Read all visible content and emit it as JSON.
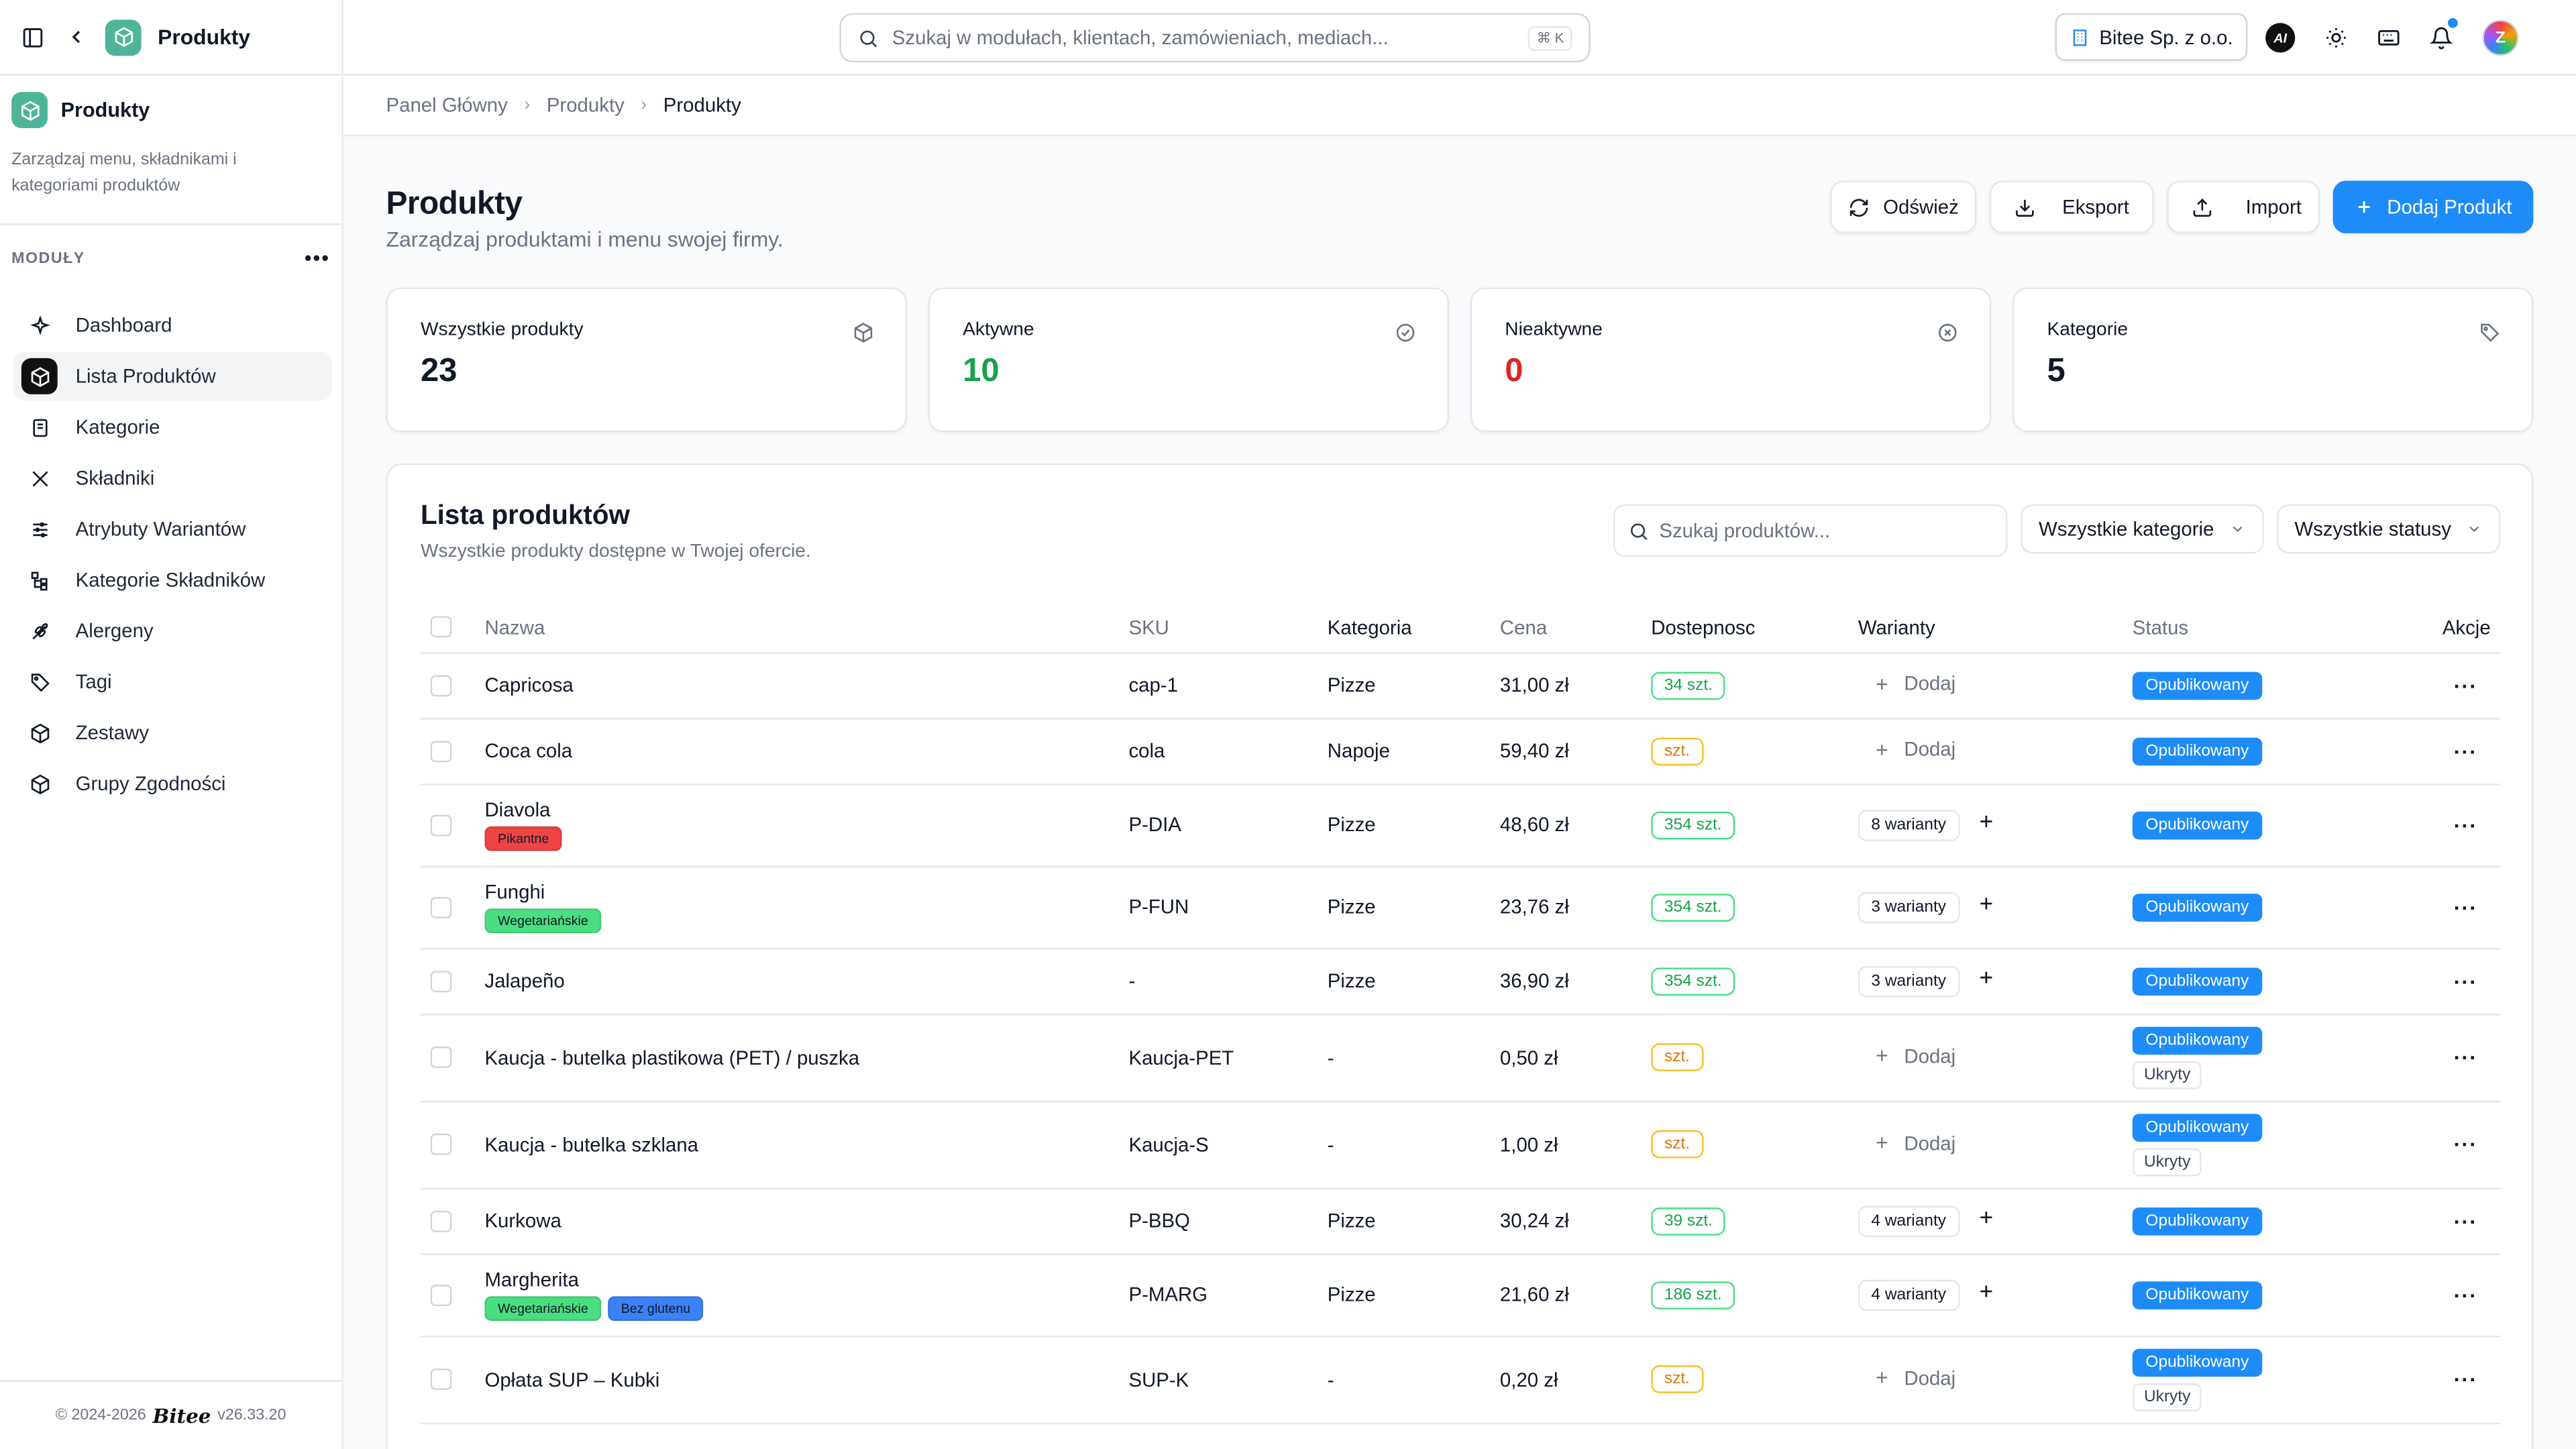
{
  "app": {
    "name": "Produkty"
  },
  "module": {
    "title": "Produkty",
    "description": "Zarządzaj menu, składnikami i kategoriami produktów",
    "section_label": "MODUŁY",
    "nav": [
      {
        "label": "Dashboard",
        "icon": "sparkle-icon",
        "active": false
      },
      {
        "label": "Lista Produktów",
        "icon": "box-icon",
        "active": true
      },
      {
        "label": "Kategorie",
        "icon": "book-icon",
        "active": false
      },
      {
        "label": "Składniki",
        "icon": "utensils-icon",
        "active": false
      },
      {
        "label": "Atrybuty Wariantów",
        "icon": "sliders-icon",
        "active": false
      },
      {
        "label": "Kategorie Składników",
        "icon": "tree-icon",
        "active": false
      },
      {
        "label": "Alergeny",
        "icon": "wheat-icon",
        "active": false
      },
      {
        "label": "Tagi",
        "icon": "tag-icon",
        "active": false
      },
      {
        "label": "Zestawy",
        "icon": "box-icon",
        "active": false
      },
      {
        "label": "Grupy Zgodności",
        "icon": "box-icon",
        "active": false
      }
    ]
  },
  "footer": {
    "copyright": "© 2024-2026",
    "brand": "Bitee",
    "version": "v26.33.20"
  },
  "topbar": {
    "search_placeholder": "Szukaj w modułach, klientach, zamówieniach, mediach...",
    "search_shortcut": "⌘ K",
    "company": "Bitee Sp. z o.o.",
    "ai_label": "AI"
  },
  "breadcrumb": [
    "Panel Główny",
    "Produkty",
    "Produkty"
  ],
  "page": {
    "title": "Produkty",
    "subtitle": "Zarządzaj produktami i menu swojej firmy.",
    "buttons": {
      "refresh": "Odśwież",
      "export": "Eksport",
      "import": "Import",
      "add": "Dodaj Produkt"
    }
  },
  "stats": [
    {
      "label": "Wszystkie produkty",
      "value": "23",
      "color": "#111827",
      "icon": "box-icon"
    },
    {
      "label": "Aktywne",
      "value": "10",
      "color": "#16a34a",
      "icon": "check-circle-icon"
    },
    {
      "label": "Nieaktywne",
      "value": "0",
      "color": "#dc2626",
      "icon": "x-circle-icon"
    },
    {
      "label": "Kategorie",
      "value": "5",
      "color": "#111827",
      "icon": "tag-icon"
    }
  ],
  "list": {
    "title": "Lista produktów",
    "subtitle": "Wszystkie produkty dostępne w Twojej ofercie.",
    "search_placeholder": "Szukaj produktów...",
    "category_filter": "Wszystkie kategorie",
    "status_filter": "Wszystkie statusy",
    "columns": [
      "Nazwa",
      "SKU",
      "Kategoria",
      "Cena",
      "Dostepnosc",
      "Warianty",
      "Status",
      "Akcje"
    ],
    "add_variant_label": "Dodaj",
    "rows": [
      {
        "name": "Capricosa",
        "sku": "cap-1",
        "category": "Pizze",
        "price": "31,00 zł",
        "stock": "34 szt.",
        "stock_state": "ok",
        "variants": "",
        "status": [
          "Opublikowany"
        ],
        "tags": []
      },
      {
        "name": "Coca cola",
        "sku": "cola",
        "category": "Napoje",
        "price": "59,40 zł",
        "stock": "szt.",
        "stock_state": "warn",
        "variants": "",
        "status": [
          "Opublikowany"
        ],
        "tags": []
      },
      {
        "name": "Diavola",
        "sku": "P-DIA",
        "category": "Pizze",
        "price": "48,60 zł",
        "stock": "354 szt.",
        "stock_state": "ok",
        "variants": "8 warianty",
        "status": [
          "Opublikowany"
        ],
        "tags": [
          {
            "label": "Pikantne",
            "color": "#ef4444"
          }
        ]
      },
      {
        "name": "Funghi",
        "sku": "P-FUN",
        "category": "Pizze",
        "price": "23,76 zł",
        "stock": "354 szt.",
        "stock_state": "ok",
        "variants": "3 warianty",
        "status": [
          "Opublikowany"
        ],
        "tags": [
          {
            "label": "Wegetariańskie",
            "color": "#4ade80"
          }
        ]
      },
      {
        "name": "Jalapeño",
        "sku": "-",
        "category": "Pizze",
        "price": "36,90 zł",
        "stock": "354 szt.",
        "stock_state": "ok",
        "variants": "3 warianty",
        "status": [
          "Opublikowany"
        ],
        "tags": []
      },
      {
        "name": "Kaucja - butelka plastikowa (PET) / puszka",
        "sku": "Kaucja-PET",
        "category": "-",
        "price": "0,50 zł",
        "stock": "szt.",
        "stock_state": "warn",
        "variants": "",
        "status": [
          "Opublikowany",
          "Ukryty"
        ],
        "tags": []
      },
      {
        "name": "Kaucja - butelka szklana",
        "sku": "Kaucja-S",
        "category": "-",
        "price": "1,00 zł",
        "stock": "szt.",
        "stock_state": "warn",
        "variants": "",
        "status": [
          "Opublikowany",
          "Ukryty"
        ],
        "tags": []
      },
      {
        "name": "Kurkowa",
        "sku": "P-BBQ",
        "category": "Pizze",
        "price": "30,24 zł",
        "stock": "39 szt.",
        "stock_state": "ok",
        "variants": "4 warianty",
        "status": [
          "Opublikowany"
        ],
        "tags": []
      },
      {
        "name": "Margherita",
        "sku": "P-MARG",
        "category": "Pizze",
        "price": "21,60 zł",
        "stock": "186 szt.",
        "stock_state": "ok",
        "variants": "4 warianty",
        "status": [
          "Opublikowany"
        ],
        "tags": [
          {
            "label": "Wegetariańskie",
            "color": "#4ade80"
          },
          {
            "label": "Bez glutenu",
            "color": "#3b82f6"
          }
        ]
      },
      {
        "name": "Opłata SUP – Kubki",
        "sku": "SUP-K",
        "category": "-",
        "price": "0,20 zł",
        "stock": "szt.",
        "stock_state": "warn",
        "variants": "",
        "status": [
          "Opublikowany",
          "Ukryty"
        ],
        "tags": []
      }
    ]
  }
}
